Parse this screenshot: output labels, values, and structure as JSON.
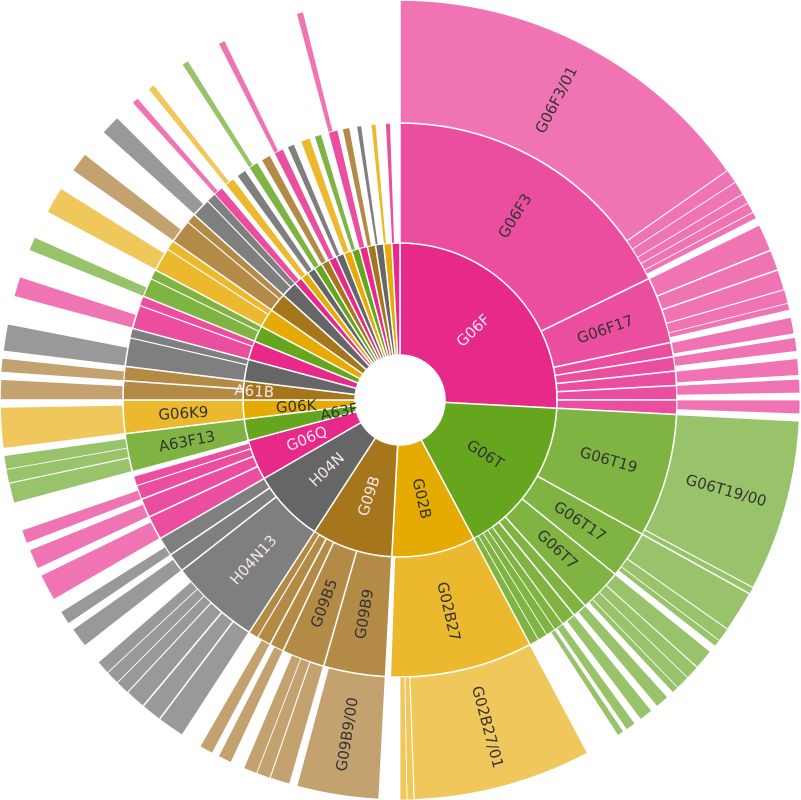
{
  "chart_data": {
    "type": "sunburst",
    "title": "",
    "palettes": {
      "pink": [
        "#e7298a",
        "#ec4e9f",
        "#f074b3"
      ],
      "green": [
        "#66a61e",
        "#7fb342",
        "#98c36a"
      ],
      "yellow": [
        "#e6ab02",
        "#ebb82e",
        "#efc75a"
      ],
      "brown": [
        "#a6761d",
        "#b48b46",
        "#c3a26f"
      ],
      "grey": [
        "#666666",
        "#7f7f7f",
        "#999999"
      ]
    },
    "label_colors": {
      "light": "#f5e6ee",
      "dark": "#333333"
    },
    "nodes": [
      {
        "label": "G06F",
        "v": 93,
        "fam": "pink",
        "light": true,
        "children": [
          {
            "label": "G06F3",
            "v": 64,
            "children": [
              {
                "label": "G06F3/01",
                "v": 55
              },
              {
                "v": 2
              },
              {
                "v": 2
              },
              {
                "v": 1.5
              },
              {
                "v": 1.5
              },
              {
                "v": 1
              }
            ]
          },
          {
            "label": "G06F17",
            "v": 14,
            "children": [
              {
                "v": 4
              },
              {
                "v": 3
              },
              {
                "v": 3
              },
              {
                "v": 2
              },
              {
                "v": 1
              }
            ]
          },
          {
            "v": 3,
            "children": [
              {
                "v": 2.5
              }
            ]
          },
          {
            "v": 3,
            "children": [
              {
                "v": 2
              }
            ]
          },
          {
            "v": 3,
            "children": [
              {
                "v": 2.5
              }
            ]
          },
          {
            "v": 3,
            "children": [
              {
                "v": 2
              }
            ]
          },
          {
            "v": 3,
            "children": [
              {
                "v": 2
              }
            ]
          }
        ]
      },
      {
        "label": "G06T",
        "v": 59,
        "fam": "green",
        "children": [
          {
            "label": "G06T19",
            "v": 26,
            "children": [
              {
                "label": "G06T19/00",
                "v": 25
              },
              {
                "v": 1
              }
            ]
          },
          {
            "label": "G06T17",
            "v": 10,
            "children": [
              {
                "v": 6
              },
              {
                "v": 2
              },
              {
                "v": 1
              }
            ]
          },
          {
            "label": "G06T7",
            "v": 9,
            "children": [
              {
                "v": 3
              },
              {
                "v": 2
              },
              {
                "v": 2
              },
              {
                "v": 1
              }
            ]
          },
          {
            "v": 3,
            "children": [
              {
                "v": 2
              }
            ]
          },
          {
            "v": 3,
            "children": [
              {
                "v": 2
              }
            ]
          },
          {
            "v": 2,
            "children": [
              {
                "v": 1.5
              }
            ]
          },
          {
            "v": 2,
            "children": [
              {
                "v": 1
              }
            ]
          },
          {
            "v": 2
          },
          {
            "v": 2
          }
        ]
      },
      {
        "label": "G02B",
        "v": 31,
        "fam": "yellow",
        "children": [
          {
            "label": "G02B27",
            "v": 30,
            "children": [
              {
                "label": "G02B27/01",
                "v": 26
              },
              {
                "v": 1
              },
              {
                "v": 1
              }
            ]
          }
        ]
      },
      {
        "label": "G09B",
        "v": 30,
        "fam": "brown",
        "light": true,
        "children": [
          {
            "label": "G09B9",
            "v": 13,
            "children": [
              {
                "label": "G09B9/00",
                "v": 12
              }
            ]
          },
          {
            "label": "G09B5",
            "v": 9,
            "children": [
              {
                "v": 3
              },
              {
                "v": 2
              },
              {
                "v": 2
              }
            ]
          },
          {
            "v": 3,
            "children": [
              {
                "v": 2
              }
            ]
          },
          {
            "v": 3,
            "children": [
              {
                "v": 2
              }
            ]
          },
          {
            "v": 2
          }
        ]
      },
      {
        "label": "H04N",
        "v": 27,
        "fam": "grey",
        "light": true,
        "children": [
          {
            "label": "H04N13",
            "v": 19,
            "light": true,
            "children": [
              {
                "v": 4
              },
              {
                "v": 3
              },
              {
                "v": 3
              },
              {
                "v": 2
              },
              {
                "v": 2
              },
              {
                "v": 2
              }
            ]
          },
          {
            "v": 4,
            "children": [
              {
                "v": 3
              }
            ]
          },
          {
            "v": 4,
            "children": [
              {
                "v": 2
              }
            ]
          }
        ]
      },
      {
        "label": "G06Q",
        "v": 15,
        "fam": "pink",
        "light": true,
        "children": [
          {
            "v": 5,
            "children": [
              {
                "v": 4
              }
            ]
          },
          {
            "v": 4,
            "children": [
              {
                "v": 3
              }
            ]
          },
          {
            "v": 3,
            "children": [
              {
                "v": 2
              }
            ]
          },
          {
            "v": 2
          }
        ]
      },
      {
        "label": "A63F",
        "v": 8,
        "fam": "green",
        "children": [
          {
            "label": "A63F13",
            "v": 8,
            "children": [
              {
                "v": 3
              },
              {
                "v": 2
              },
              {
                "v": 2
              }
            ]
          }
        ]
      },
      {
        "label": "G06K",
        "v": 7,
        "fam": "yellow",
        "children": [
          {
            "label": "G06K9",
            "v": 7,
            "children": [
              {
                "v": 6
              }
            ]
          }
        ]
      },
      {
        "label": "A61B",
        "v": 7,
        "fam": "brown",
        "light": true,
        "children": [
          {
            "v": 4,
            "children": [
              {
                "v": 3
              }
            ]
          },
          {
            "v": 3,
            "children": [
              {
                "v": 2
              }
            ]
          }
        ]
      },
      {
        "v": 8,
        "fam": "grey",
        "children": [
          {
            "v": 6,
            "children": [
              {
                "v": 4
              }
            ]
          },
          {
            "v": 2
          }
        ]
      },
      {
        "v": 7,
        "fam": "pink",
        "children": [
          {
            "v": 5,
            "children": [
              {
                "v": 3
              }
            ]
          },
          {
            "v": 2
          }
        ]
      },
      {
        "v": 6,
        "fam": "green",
        "children": [
          {
            "v": 4,
            "children": [
              {
                "v": 2
              }
            ]
          },
          {
            "v": 2
          }
        ]
      },
      {
        "v": 7,
        "fam": "yellow",
        "children": [
          {
            "v": 5,
            "children": [
              {
                "v": 4
              }
            ]
          },
          {
            "v": 2
          }
        ]
      },
      {
        "v": 7,
        "fam": "brown",
        "children": [
          {
            "v": 5,
            "children": [
              {
                "v": 3
              }
            ]
          },
          {
            "v": 2
          }
        ]
      },
      {
        "v": 6,
        "fam": "grey",
        "children": [
          {
            "v": 4,
            "children": [
              {
                "v": 3
              }
            ]
          },
          {
            "v": 2
          }
        ]
      },
      {
        "v": 3,
        "fam": "pink",
        "children": [
          {
            "v": 2,
            "children": [
              {
                "v": 1
              }
            ]
          }
        ]
      },
      {
        "v": 3,
        "fam": "yellow",
        "children": [
          {
            "v": 2,
            "children": [
              {
                "v": 1
              }
            ]
          }
        ]
      },
      {
        "v": 3,
        "fam": "grey",
        "children": [
          {
            "v": 2
          }
        ]
      },
      {
        "v": 3,
        "fam": "green",
        "children": [
          {
            "v": 2,
            "children": [
              {
                "v": 1
              }
            ]
          }
        ]
      },
      {
        "v": 3,
        "fam": "brown",
        "children": [
          {
            "v": 2
          }
        ]
      },
      {
        "v": 3,
        "fam": "pink",
        "children": [
          {
            "v": 2,
            "children": [
              {
                "v": 1
              }
            ]
          }
        ]
      },
      {
        "v": 3,
        "fam": "grey",
        "children": [
          {
            "v": 1.5
          }
        ]
      },
      {
        "v": 3,
        "fam": "yellow",
        "children": [
          {
            "v": 2
          }
        ]
      },
      {
        "v": 3,
        "fam": "green",
        "children": [
          {
            "v": 1.5
          }
        ]
      },
      {
        "v": 3,
        "fam": "pink",
        "children": [
          {
            "v": 2,
            "children": [
              {
                "v": 1
              }
            ]
          }
        ]
      },
      {
        "v": 3,
        "fam": "brown",
        "children": [
          {
            "v": 1.5
          }
        ]
      },
      {
        "v": 3,
        "fam": "grey",
        "children": [
          {
            "v": 1
          }
        ]
      },
      {
        "v": 3,
        "fam": "yellow",
        "children": [
          {
            "v": 1
          }
        ]
      },
      {
        "v": 3,
        "fam": "pink",
        "children": [
          {
            "v": 1
          }
        ]
      }
    ]
  }
}
